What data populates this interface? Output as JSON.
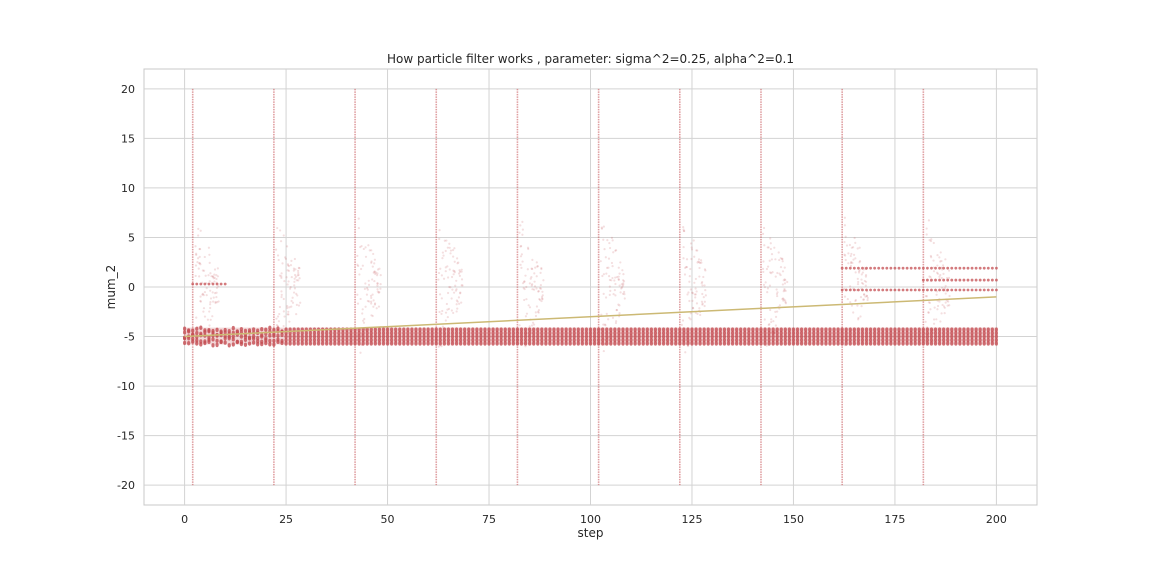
{
  "chart_data": {
    "type": "scatter",
    "title": "How particle filter works , parameter: sigma^2=0.25, alpha^2=0.1",
    "xlabel": "step",
    "ylabel": "mum_2",
    "xlim": [
      -10,
      210
    ],
    "ylim": [
      -22,
      22
    ],
    "xticks": [
      0,
      25,
      50,
      75,
      100,
      125,
      150,
      175,
      200
    ],
    "yticks": [
      -20,
      -15,
      -10,
      -5,
      0,
      5,
      10,
      15,
      20
    ],
    "grid": true,
    "colors": {
      "particles": "#c44e52",
      "line": "#ccb974",
      "grid": "#d3d3d3",
      "spine": "#c8c8c8"
    },
    "particle_band": {
      "x_start": 0,
      "x_end": 200,
      "y_min": -5.8,
      "y_max": -4.1
    },
    "resampling_steps": [
      2,
      22,
      42,
      62,
      82,
      102,
      122,
      142,
      162,
      182
    ],
    "resampling_range": [
      -20,
      20
    ],
    "extra_bands": [
      {
        "x_start": 2,
        "x_end": 10,
        "y": 0.3
      },
      {
        "x_start": 162,
        "x_end": 200,
        "y": 1.9
      },
      {
        "x_start": 162,
        "x_end": 200,
        "y": -0.3
      },
      {
        "x_start": 182,
        "x_end": 200,
        "y": 0.7
      }
    ],
    "series": [
      {
        "kind": "line",
        "x": [
          0,
          200
        ],
        "y": [
          -5.0,
          -1.0
        ]
      }
    ]
  }
}
